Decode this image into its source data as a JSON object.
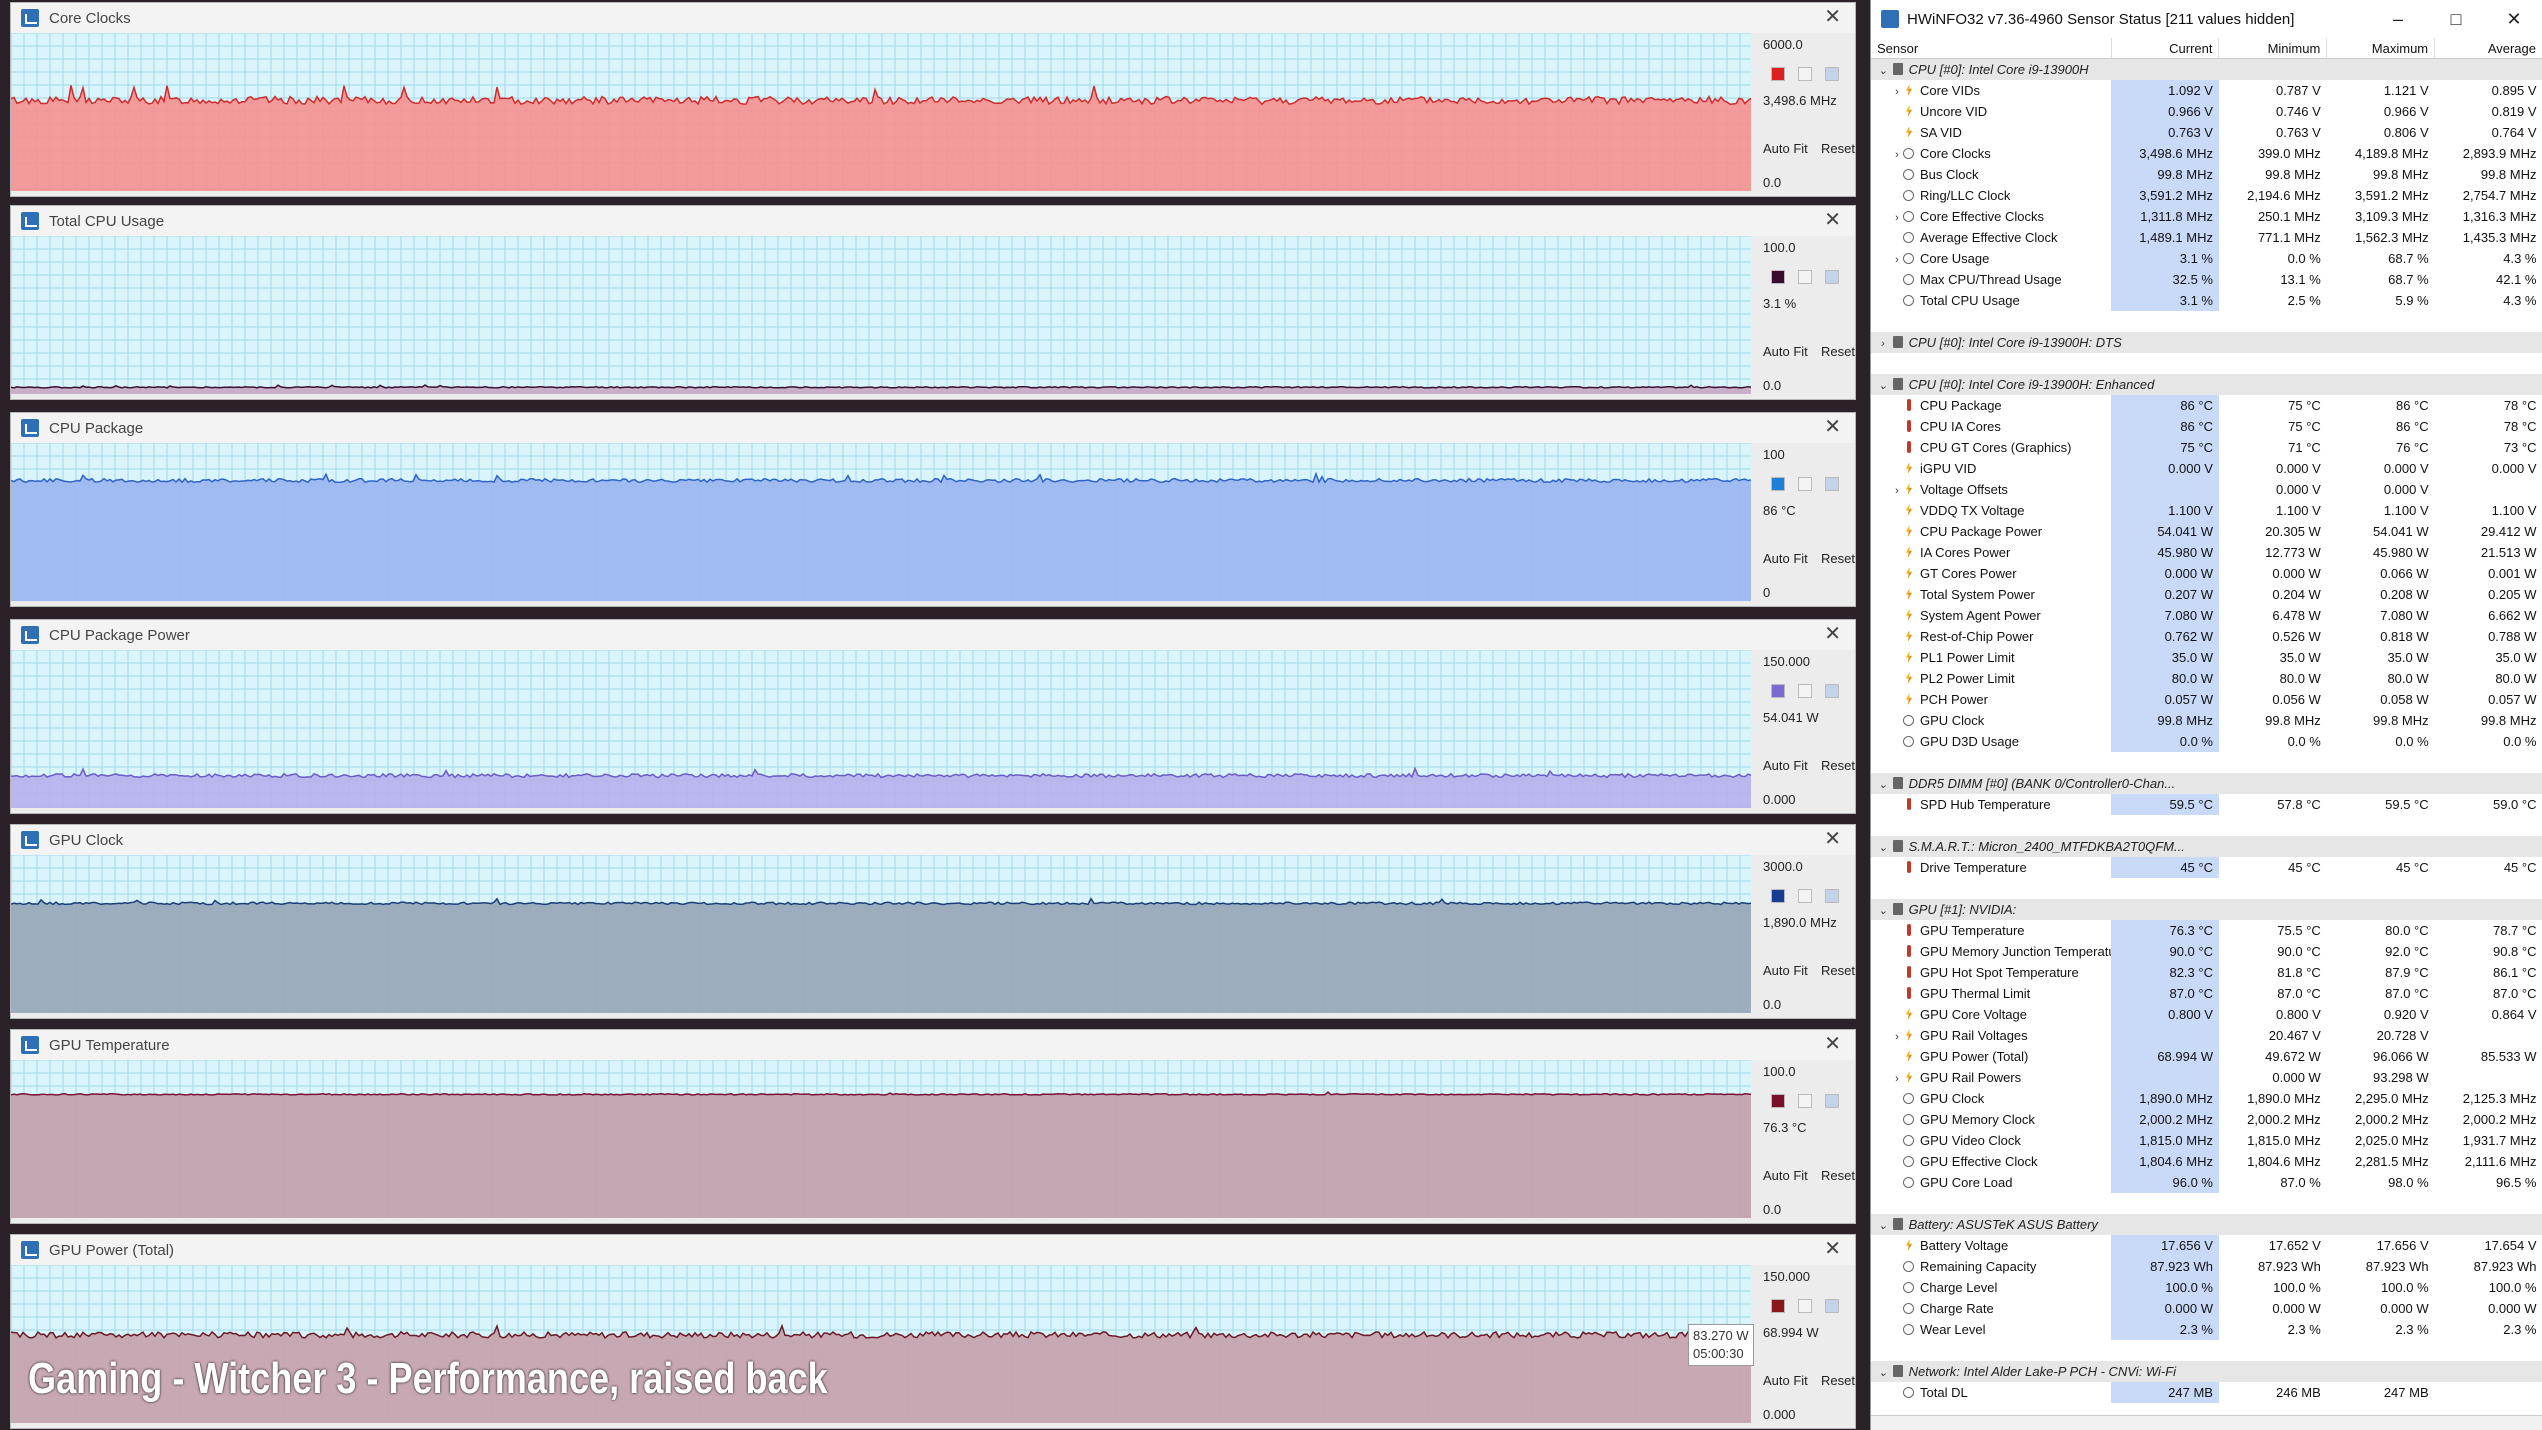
{
  "graphs": [
    {
      "title": "Core Clocks",
      "max_label": "6000.0",
      "current_label": "3,498.6 MHz",
      "min_label": "0.0",
      "max": 6000,
      "level": 3498.6,
      "noise": 0.025,
      "fill": "#f59191",
      "line": "#d02a2a",
      "swatch": "#dd1f1f"
    },
    {
      "title": "Total CPU Usage",
      "max_label": "100.0",
      "current_label": "3.1 %",
      "min_label": "0.0",
      "max": 100,
      "level": 3.1,
      "noise": 0.004,
      "fill": "#c9a8c4",
      "line": "#3b1130",
      "swatch": "#3a0b2d"
    },
    {
      "title": "CPU Package",
      "max_label": "100",
      "current_label": "86 °C",
      "min_label": "0",
      "max": 100,
      "level": 78,
      "noise": 0.012,
      "fill": "#9bb5f0",
      "line": "#2e64c8",
      "swatch": "#1e7fd6"
    },
    {
      "title": "CPU Package Power",
      "max_label": "150.000",
      "current_label": "54.041 W",
      "min_label": "0.000",
      "max": 150,
      "level": 30,
      "noise": 0.012,
      "fill": "#b6b1ec",
      "line": "#6c5cc7",
      "swatch": "#7a6ad1"
    },
    {
      "title": "GPU Clock",
      "max_label": "3000.0",
      "current_label": "1,890.0 MHz",
      "min_label": "0.0",
      "max": 3000,
      "level": 2125,
      "noise": 0.008,
      "fill": "#97a7b9",
      "line": "#1b3e7a",
      "swatch": "#143e96"
    },
    {
      "title": "GPU Temperature",
      "max_label": "100.0",
      "current_label": "76.3 °C",
      "min_label": "0.0",
      "max": 100,
      "level": 80,
      "noise": 0.004,
      "fill": "#c2a0ad",
      "line": "#7a1233",
      "swatch": "#7a0f2a"
    },
    {
      "title": "GPU Power (Total)",
      "max_label": "150.000",
      "current_label": "68.994 W",
      "min_label": "0.000",
      "max": 150,
      "level": 85,
      "noise": 0.02,
      "fill": "#c7a2ac",
      "line": "#6a1a26",
      "swatch": "#8a1a1a"
    }
  ],
  "graph_buttons": {
    "auto_fit": "Auto Fit",
    "reset": "Reset"
  },
  "tooltip": {
    "value": "83.270 W",
    "time": "05:00:30"
  },
  "caption": "Gaming - Witcher 3 - Performance, raised back",
  "hwinfo": {
    "title": "HWiNFO32 v7.36-4960 Sensor Status [211 values hidden]",
    "buttons": {
      "minimize": "–",
      "maximize": "□",
      "close": "✕"
    },
    "columns": {
      "sensor": "Sensor",
      "current": "Current",
      "minimum": "Minimum",
      "maximum": "Maximum",
      "average": "Average"
    },
    "rows": [
      {
        "type": "group",
        "name": "CPU [#0]: Intel Core i9-13900H",
        "exp": "v"
      },
      {
        "name": "Core VIDs",
        "icon": "volt",
        "exp": ">",
        "cur": "1.092 V",
        "min": "0.787 V",
        "max": "1.121 V",
        "avg": "0.895 V"
      },
      {
        "name": "Uncore VID",
        "icon": "volt",
        "cur": "0.966 V",
        "min": "0.746 V",
        "max": "0.966 V",
        "avg": "0.819 V"
      },
      {
        "name": "SA VID",
        "icon": "volt",
        "cur": "0.763 V",
        "min": "0.763 V",
        "max": "0.806 V",
        "avg": "0.764 V"
      },
      {
        "name": "Core Clocks",
        "icon": "clock",
        "exp": ">",
        "cur": "3,498.6 MHz",
        "min": "399.0 MHz",
        "max": "4,189.8 MHz",
        "avg": "2,893.9 MHz"
      },
      {
        "name": "Bus Clock",
        "icon": "clock",
        "cur": "99.8 MHz",
        "min": "99.8 MHz",
        "max": "99.8 MHz",
        "avg": "99.8 MHz"
      },
      {
        "name": "Ring/LLC Clock",
        "icon": "clock",
        "cur": "3,591.2 MHz",
        "min": "2,194.6 MHz",
        "max": "3,591.2 MHz",
        "avg": "2,754.7 MHz"
      },
      {
        "name": "Core Effective Clocks",
        "icon": "clock",
        "exp": ">",
        "cur": "1,311.8 MHz",
        "min": "250.1 MHz",
        "max": "3,109.3 MHz",
        "avg": "1,316.3 MHz"
      },
      {
        "name": "Average Effective Clock",
        "icon": "clock",
        "cur": "1,489.1 MHz",
        "min": "771.1 MHz",
        "max": "1,562.3 MHz",
        "avg": "1,435.3 MHz"
      },
      {
        "name": "Core Usage",
        "icon": "clock",
        "exp": ">",
        "cur": "3.1 %",
        "min": "0.0 %",
        "max": "68.7 %",
        "avg": "4.3 %"
      },
      {
        "name": "Max CPU/Thread Usage",
        "icon": "clock",
        "cur": "32.5 %",
        "min": "13.1 %",
        "max": "68.7 %",
        "avg": "42.1 %"
      },
      {
        "name": "Total CPU Usage",
        "icon": "clock",
        "cur": "3.1 %",
        "min": "2.5 %",
        "max": "5.9 %",
        "avg": "4.3 %"
      },
      {
        "type": "blank"
      },
      {
        "type": "group",
        "name": "CPU [#0]: Intel Core i9-13900H: DTS",
        "exp": ">"
      },
      {
        "type": "blank"
      },
      {
        "type": "group",
        "name": "CPU [#0]: Intel Core i9-13900H: Enhanced",
        "exp": "v"
      },
      {
        "name": "CPU Package",
        "icon": "therm",
        "cur": "86 °C",
        "min": "75 °C",
        "max": "86 °C",
        "avg": "78 °C"
      },
      {
        "name": "CPU IA Cores",
        "icon": "therm",
        "cur": "86 °C",
        "min": "75 °C",
        "max": "86 °C",
        "avg": "78 °C"
      },
      {
        "name": "CPU GT Cores (Graphics)",
        "icon": "therm",
        "cur": "75 °C",
        "min": "71 °C",
        "max": "76 °C",
        "avg": "73 °C"
      },
      {
        "name": "iGPU VID",
        "icon": "volt",
        "cur": "0.000 V",
        "min": "0.000 V",
        "max": "0.000 V",
        "avg": "0.000 V"
      },
      {
        "name": "Voltage Offsets",
        "icon": "volt",
        "exp": ">",
        "cur": "",
        "min": "0.000 V",
        "max": "0.000 V",
        "avg": ""
      },
      {
        "name": "VDDQ TX Voltage",
        "icon": "volt",
        "cur": "1.100 V",
        "min": "1.100 V",
        "max": "1.100 V",
        "avg": "1.100 V"
      },
      {
        "name": "CPU Package Power",
        "icon": "volt",
        "cur": "54.041 W",
        "min": "20.305 W",
        "max": "54.041 W",
        "avg": "29.412 W"
      },
      {
        "name": "IA Cores Power",
        "icon": "volt",
        "cur": "45.980 W",
        "min": "12.773 W",
        "max": "45.980 W",
        "avg": "21.513 W"
      },
      {
        "name": "GT Cores Power",
        "icon": "volt",
        "cur": "0.000 W",
        "min": "0.000 W",
        "max": "0.066 W",
        "avg": "0.001 W"
      },
      {
        "name": "Total System Power",
        "icon": "volt",
        "cur": "0.207 W",
        "min": "0.204 W",
        "max": "0.208 W",
        "avg": "0.205 W"
      },
      {
        "name": "System Agent Power",
        "icon": "volt",
        "cur": "7.080 W",
        "min": "6.478 W",
        "max": "7.080 W",
        "avg": "6.662 W"
      },
      {
        "name": "Rest-of-Chip Power",
        "icon": "volt",
        "cur": "0.762 W",
        "min": "0.526 W",
        "max": "0.818 W",
        "avg": "0.788 W"
      },
      {
        "name": "PL1 Power Limit",
        "icon": "volt",
        "cur": "35.0 W",
        "min": "35.0 W",
        "max": "35.0 W",
        "avg": "35.0 W"
      },
      {
        "name": "PL2 Power Limit",
        "icon": "volt",
        "cur": "80.0 W",
        "min": "80.0 W",
        "max": "80.0 W",
        "avg": "80.0 W"
      },
      {
        "name": "PCH Power",
        "icon": "volt",
        "cur": "0.057 W",
        "min": "0.056 W",
        "max": "0.058 W",
        "avg": "0.057 W"
      },
      {
        "name": "GPU Clock",
        "icon": "clock",
        "cur": "99.8 MHz",
        "min": "99.8 MHz",
        "max": "99.8 MHz",
        "avg": "99.8 MHz"
      },
      {
        "name": "GPU D3D Usage",
        "icon": "clock",
        "cur": "0.0 %",
        "min": "0.0 %",
        "max": "0.0 %",
        "avg": "0.0 %"
      },
      {
        "type": "blank"
      },
      {
        "type": "group",
        "name": "DDR5 DIMM [#0] (BANK 0/Controller0-Chan...",
        "exp": "v"
      },
      {
        "name": "SPD Hub Temperature",
        "icon": "therm",
        "cur": "59.5 °C",
        "min": "57.8 °C",
        "max": "59.5 °C",
        "avg": "59.0 °C"
      },
      {
        "type": "blank"
      },
      {
        "type": "group",
        "name": "S.M.A.R.T.: Micron_2400_MTFDKBA2T0QFM...",
        "exp": "v"
      },
      {
        "name": "Drive Temperature",
        "icon": "therm",
        "cur": "45 °C",
        "min": "45 °C",
        "max": "45 °C",
        "avg": "45 °C"
      },
      {
        "type": "blank"
      },
      {
        "type": "group",
        "name": "GPU [#1]: NVIDIA:",
        "exp": "v"
      },
      {
        "name": "GPU Temperature",
        "icon": "therm",
        "cur": "76.3 °C",
        "min": "75.5 °C",
        "max": "80.0 °C",
        "avg": "78.7 °C"
      },
      {
        "name": "GPU Memory Junction Temperature",
        "icon": "therm",
        "cur": "90.0 °C",
        "min": "90.0 °C",
        "max": "92.0 °C",
        "avg": "90.8 °C"
      },
      {
        "name": "GPU Hot Spot Temperature",
        "icon": "therm",
        "cur": "82.3 °C",
        "min": "81.8 °C",
        "max": "87.9 °C",
        "avg": "86.1 °C"
      },
      {
        "name": "GPU Thermal Limit",
        "icon": "therm",
        "cur": "87.0 °C",
        "min": "87.0 °C",
        "max": "87.0 °C",
        "avg": "87.0 °C"
      },
      {
        "name": "GPU Core Voltage",
        "icon": "volt",
        "cur": "0.800 V",
        "min": "0.800 V",
        "max": "0.920 V",
        "avg": "0.864 V"
      },
      {
        "name": "GPU Rail Voltages",
        "icon": "volt",
        "exp": ">",
        "cur": "",
        "min": "20.467 V",
        "max": "20.728 V",
        "avg": ""
      },
      {
        "name": "GPU Power (Total)",
        "icon": "volt",
        "cur": "68.994 W",
        "min": "49.672 W",
        "max": "96.066 W",
        "avg": "85.533 W"
      },
      {
        "name": "GPU Rail Powers",
        "icon": "volt",
        "exp": ">",
        "cur": "",
        "min": "0.000 W",
        "max": "93.298 W",
        "avg": ""
      },
      {
        "name": "GPU Clock",
        "icon": "clock",
        "cur": "1,890.0 MHz",
        "min": "1,890.0 MHz",
        "max": "2,295.0 MHz",
        "avg": "2,125.3 MHz"
      },
      {
        "name": "GPU Memory Clock",
        "icon": "clock",
        "cur": "2,000.2 MHz",
        "min": "2,000.2 MHz",
        "max": "2,000.2 MHz",
        "avg": "2,000.2 MHz"
      },
      {
        "name": "GPU Video Clock",
        "icon": "clock",
        "cur": "1,815.0 MHz",
        "min": "1,815.0 MHz",
        "max": "2,025.0 MHz",
        "avg": "1,931.7 MHz"
      },
      {
        "name": "GPU Effective Clock",
        "icon": "clock",
        "cur": "1,804.6 MHz",
        "min": "1,804.6 MHz",
        "max": "2,281.5 MHz",
        "avg": "2,111.6 MHz"
      },
      {
        "name": "GPU Core Load",
        "icon": "clock",
        "cur": "96.0 %",
        "min": "87.0 %",
        "max": "98.0 %",
        "avg": "96.5 %"
      },
      {
        "type": "blank"
      },
      {
        "type": "group",
        "name": "Battery: ASUSTeK ASUS Battery",
        "exp": "v"
      },
      {
        "name": "Battery Voltage",
        "icon": "volt",
        "cur": "17.656 V",
        "min": "17.652 V",
        "max": "17.656 V",
        "avg": "17.654 V"
      },
      {
        "name": "Remaining Capacity",
        "icon": "clock",
        "cur": "87.923 Wh",
        "min": "87.923 Wh",
        "max": "87.923 Wh",
        "avg": "87.923 Wh"
      },
      {
        "name": "Charge Level",
        "icon": "clock",
        "cur": "100.0 %",
        "min": "100.0 %",
        "max": "100.0 %",
        "avg": "100.0 %"
      },
      {
        "name": "Charge Rate",
        "icon": "clock",
        "cur": "0.000 W",
        "min": "0.000 W",
        "max": "0.000 W",
        "avg": "0.000 W"
      },
      {
        "name": "Wear Level",
        "icon": "clock",
        "cur": "2.3 %",
        "min": "2.3 %",
        "max": "2.3 %",
        "avg": "2.3 %"
      },
      {
        "type": "blank"
      },
      {
        "type": "group",
        "name": "Network: Intel Alder Lake-P PCH - CNVi: Wi-Fi",
        "exp": "v"
      },
      {
        "name": "Total DL",
        "icon": "clock",
        "cur": "247 MB",
        "min": "246 MB",
        "max": "247 MB",
        "avg": ""
      }
    ]
  }
}
